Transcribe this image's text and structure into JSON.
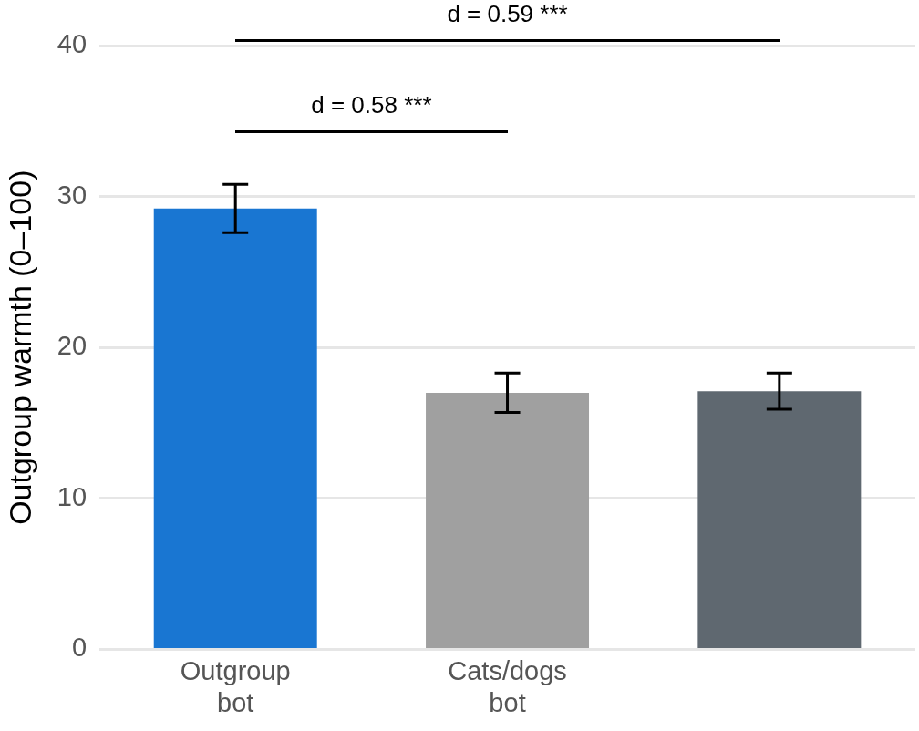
{
  "chart_data": {
    "type": "bar",
    "ylabel": "Outgroup warmth (0–100)",
    "categories": [
      "Outgroup bot",
      "Cats/dogs bot",
      null
    ],
    "values": [
      29.2,
      17.0,
      17.1
    ],
    "colors": [
      "#1976d2",
      "#a0a0a0",
      "#5f6870"
    ],
    "errors": [
      1.6,
      1.3,
      1.2
    ],
    "ylim": [
      0,
      40
    ],
    "yticks": [
      0,
      10,
      20,
      30,
      40
    ],
    "grid": "y",
    "annotations": [
      "d = 0.58 ***",
      "d = 0.59 ***"
    ]
  }
}
